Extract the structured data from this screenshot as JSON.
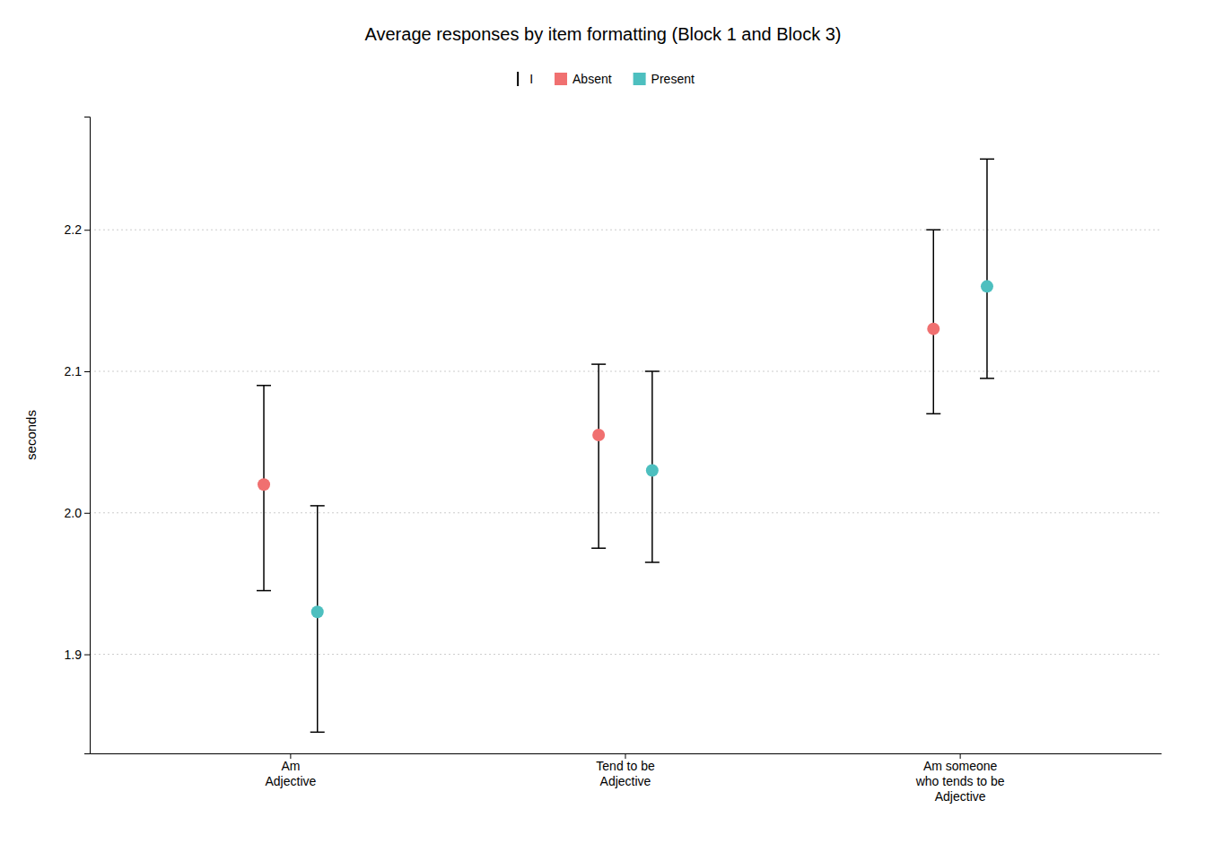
{
  "chart_data": {
    "type": "dot",
    "title": "Average responses by item formatting (Block 1 and Block 3)",
    "ylabel": "seconds",
    "categories": [
      "Am\nAdjective",
      "Tend to be\nAdjective",
      "Am someone\nwho tends to be\nAdjective"
    ],
    "series": [
      {
        "name": "Absent",
        "color": "#F07070",
        "marker": "circle",
        "values": [
          2.02,
          2.055,
          2.13
        ],
        "ci_low": [
          1.945,
          1.975,
          2.07
        ],
        "ci_high": [
          2.09,
          2.105,
          2.2
        ]
      },
      {
        "name": "Present",
        "color": "#4DBFBF",
        "marker": "circle",
        "values": [
          1.93,
          2.03,
          2.16
        ],
        "ci_low": [
          1.845,
          1.965,
          2.095
        ],
        "ci_high": [
          2.005,
          2.1,
          2.25
        ]
      }
    ],
    "legend_title": "I",
    "ylim": [
      1.83,
      2.28
    ],
    "yticks": [
      1.9,
      {
        "value": 2.0,
        "label": "2.0"
      },
      2.1,
      2.2
    ],
    "grid": true,
    "legend": "top"
  }
}
